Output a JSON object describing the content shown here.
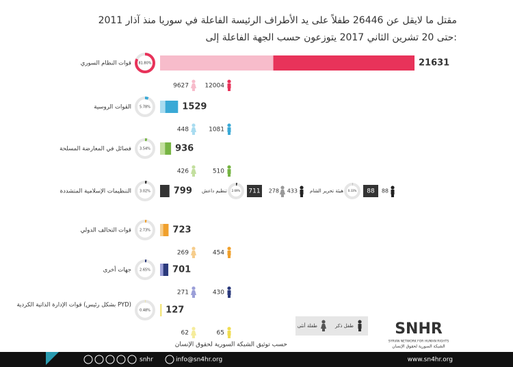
{
  "header": {
    "title_line1": "مقتل ما لايقل عن 26446 طفلاً على يد الأطراف الرئيسة الفاعلة في سوريا منذ آذار 2011",
    "title_line2": "حتى 20 تشرين الثاني 2017 يتوزعون حسب الجهة الفاعلة إلى:"
  },
  "chart_data": {
    "type": "bar",
    "categories": [
      "قوات النظام السوري",
      "القوات الروسية",
      "فصائل في المعارضة المسلحة",
      "التنظيمات الإسلامية المتشددة",
      "قوات التحالف الدولي",
      "جهات أخرى",
      "قوات الإدارة الذاتية الكردية (بشكل رئيس PYD)"
    ],
    "values": [
      21631,
      1529,
      936,
      799,
      723,
      701,
      127
    ],
    "percents": [
      81.8,
      5.78,
      3.54,
      3.02,
      2.73,
      2.65,
      0.48
    ],
    "percent_labels": [
      "81.80%",
      "5.78%",
      "3.54%",
      "3.02%",
      "2.73%",
      "2.65%",
      "0.48%"
    ],
    "colors": [
      "#e8335a",
      "#3aa9d6",
      "#76b443",
      "#333333",
      "#f0a02c",
      "#2b3a7c",
      "#f0dc50"
    ],
    "light_colors": [
      "#f7bccb",
      "#a9dcf0",
      "#c3df9f",
      "#999999",
      "#f6cd8c",
      "#9b9fd8",
      "#f5ec9c"
    ],
    "series": [
      {
        "name": "طفل ذكر",
        "values": [
          12004,
          1081,
          510,
          null,
          454,
          430,
          65
        ]
      },
      {
        "name": "طفلة أنثى",
        "values": [
          9627,
          448,
          426,
          null,
          269,
          271,
          62
        ]
      }
    ],
    "subgroups": [
      {
        "name": "تنظيم داعش",
        "value": 711,
        "percent": 2.69,
        "percent_label": "2.69%",
        "boys": 433,
        "girls": 278
      },
      {
        "name": "هيئة تحرير الشام",
        "value": 88,
        "percent": 0.33,
        "percent_label": "0.33%",
        "boys": 88,
        "girls": null
      }
    ],
    "source": "حسب توثيق الشبكة السورية لحقوق الإنسان"
  },
  "logo": {
    "abbr": "SNHR",
    "english": "SYRIAN NETWORK FOR HUMAN RIGHTS",
    "arabic": "الشبكة السورية لحقوق الإنسان"
  },
  "footer": {
    "handle": "snhr",
    "email": "info@sn4hr.org",
    "website": "www.sn4hr.org"
  }
}
